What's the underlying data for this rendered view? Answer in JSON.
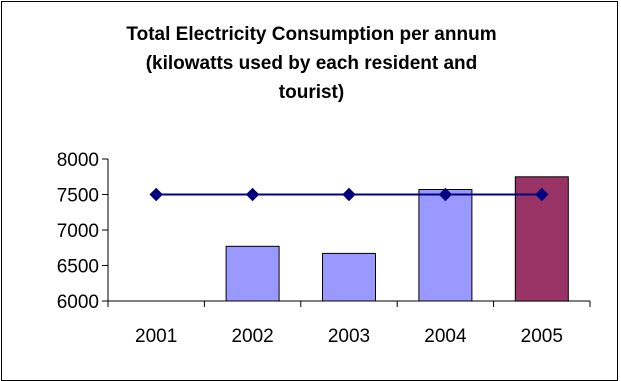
{
  "chart_data": {
    "type": "bar",
    "title_lines": [
      "Total Electricity Consumption per annum",
      "(kilowatts used by each resident and",
      "tourist)"
    ],
    "categories": [
      "2001",
      "2002",
      "2003",
      "2004",
      "2005"
    ],
    "series": [
      {
        "kind": "bar",
        "values": [
          null,
          6770,
          6670,
          7570,
          7750
        ],
        "colors": [
          "#9999ff",
          "#9999ff",
          "#9999ff",
          "#9999ff",
          "#993366"
        ]
      },
      {
        "kind": "line",
        "values": [
          7500,
          7500,
          7500,
          7500,
          7500
        ],
        "color": "#000080",
        "marker": "diamond"
      }
    ],
    "ylim": [
      6000,
      8000
    ],
    "yticks": [
      6000,
      6500,
      7000,
      7500,
      8000
    ],
    "grid": false,
    "legend": "none"
  }
}
